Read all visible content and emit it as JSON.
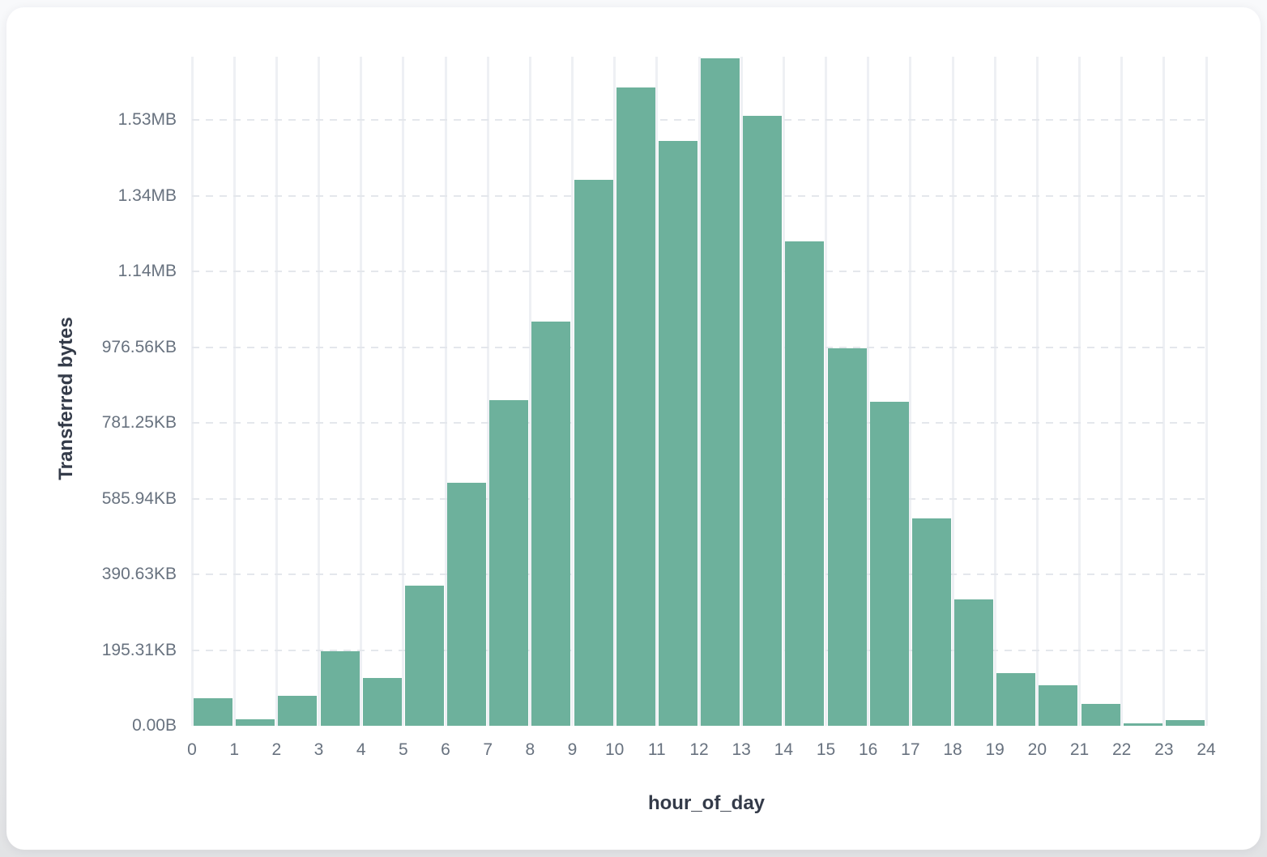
{
  "chart_data": {
    "type": "bar",
    "title": "",
    "xlabel": "hour_of_day",
    "ylabel": "Transferred bytes",
    "x_bins": [
      0,
      1,
      2,
      3,
      4,
      5,
      6,
      7,
      8,
      9,
      10,
      11,
      12,
      13,
      14,
      15,
      16,
      17,
      18,
      19,
      20,
      21,
      22,
      23
    ],
    "values_bytes": [
      72700,
      17100,
      79100,
      197000,
      126200,
      370100,
      641700,
      859900,
      1067400,
      1441700,
      1687700,
      1544400,
      1764700,
      1612800,
      1279100,
      998000,
      855600,
      547600,
      333700,
      139000,
      107000,
      57800,
      6400,
      15000
    ],
    "x_ticks": [
      "0",
      "1",
      "2",
      "3",
      "4",
      "5",
      "6",
      "7",
      "8",
      "9",
      "10",
      "11",
      "12",
      "13",
      "14",
      "15",
      "16",
      "17",
      "18",
      "19",
      "20",
      "21",
      "22",
      "23",
      "24"
    ],
    "y_ticks": [
      {
        "label": "0.00B",
        "bytes": 0
      },
      {
        "label": "195.31KB",
        "bytes": 200000
      },
      {
        "label": "390.63KB",
        "bytes": 400000
      },
      {
        "label": "585.94KB",
        "bytes": 600000
      },
      {
        "label": "781.25KB",
        "bytes": 800000
      },
      {
        "label": "976.56KB",
        "bytes": 1000000
      },
      {
        "label": "1.14MB",
        "bytes": 1200000
      },
      {
        "label": "1.34MB",
        "bytes": 1400000
      },
      {
        "label": "1.53MB",
        "bytes": 1600000
      }
    ],
    "xlim": [
      0,
      24
    ],
    "ylim_bytes": [
      0,
      1768000
    ],
    "grid": {
      "horizontal": "dashed",
      "vertical": "solid"
    },
    "legend": "none",
    "colors": {
      "bar": "#6DB19C",
      "vertical_grid": "#EEF0F4",
      "horizontal_grid": "#E4E7EC",
      "tick_text": "#68727F",
      "axis_title_text": "#343B49",
      "card_background": "#FFFFFF"
    }
  }
}
